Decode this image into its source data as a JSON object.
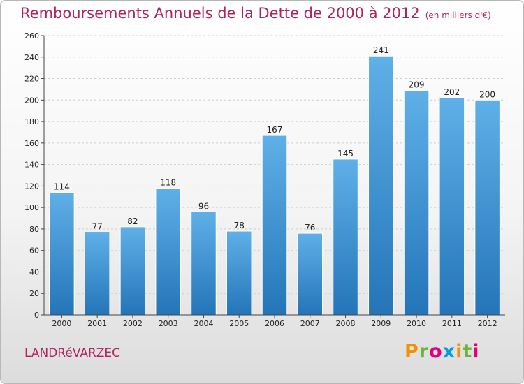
{
  "title": "Remboursements Annuels de la Dette de 2000 à 2012",
  "subtitle": "(en milliers d'€)",
  "commune": "LANDRéVARZEC",
  "logo": {
    "text": "Proxiti",
    "letters": [
      {
        "char": "P",
        "color": "#f39200"
      },
      {
        "char": "r",
        "color": "#6cb33f"
      },
      {
        "char": "o",
        "color": "#e2007a"
      },
      {
        "char": "x",
        "color": "#009fe3"
      },
      {
        "char": "i",
        "color": "#f39200"
      },
      {
        "char": "t",
        "color": "#6cb33f"
      },
      {
        "char": "i",
        "color": "#e2007a"
      }
    ]
  },
  "colors": {
    "bar_top": "#5fb0e8",
    "bar_bottom": "#2475b8",
    "title": "#b0245e"
  },
  "chart_data": {
    "type": "bar",
    "title": "Remboursements Annuels de la Dette de 2000 à 2012",
    "subtitle": "(en milliers d'€)",
    "categories": [
      "2000",
      "2001",
      "2002",
      "2003",
      "2004",
      "2005",
      "2006",
      "2007",
      "2008",
      "2009",
      "2010",
      "2011",
      "2012"
    ],
    "values": [
      114,
      77,
      82,
      118,
      96,
      78,
      167,
      76,
      145,
      241,
      209,
      202,
      200
    ],
    "ylim": [
      0,
      260
    ],
    "yticks": [
      0,
      20,
      40,
      60,
      80,
      100,
      120,
      140,
      160,
      180,
      200,
      220,
      240,
      260
    ],
    "grid": true,
    "legend": "none"
  }
}
